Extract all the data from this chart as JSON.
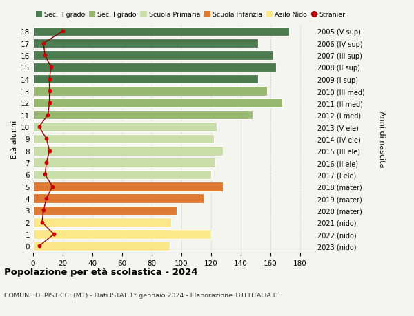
{
  "ages": [
    0,
    1,
    2,
    3,
    4,
    5,
    6,
    7,
    8,
    9,
    10,
    11,
    12,
    13,
    14,
    15,
    16,
    17,
    18
  ],
  "right_labels": [
    "2023 (nido)",
    "2022 (nido)",
    "2021 (nido)",
    "2020 (mater)",
    "2019 (mater)",
    "2018 (mater)",
    "2017 (I ele)",
    "2016 (II ele)",
    "2015 (III ele)",
    "2014 (IV ele)",
    "2013 (V ele)",
    "2012 (I med)",
    "2011 (II med)",
    "2010 (III med)",
    "2009 (I sup)",
    "2008 (II sup)",
    "2007 (III sup)",
    "2006 (IV sup)",
    "2005 (V sup)"
  ],
  "bar_values": [
    92,
    120,
    93,
    97,
    115,
    128,
    120,
    123,
    128,
    122,
    124,
    148,
    168,
    158,
    152,
    164,
    162,
    152,
    173
  ],
  "bar_colors": [
    "#fce88a",
    "#fce88a",
    "#fce88a",
    "#df7a35",
    "#df7a35",
    "#df7a35",
    "#c8dda8",
    "#c8dda8",
    "#c8dda8",
    "#c8dda8",
    "#c8dda8",
    "#98b872",
    "#98b872",
    "#98b872",
    "#4d7c50",
    "#4d7c50",
    "#4d7c50",
    "#4d7c50",
    "#4d7c50"
  ],
  "stranieri_values": [
    4,
    14,
    6,
    7,
    9,
    13,
    8,
    9,
    11,
    9,
    4,
    10,
    11,
    11,
    11,
    12,
    8,
    7,
    20
  ],
  "legend_labels": [
    "Sec. II grado",
    "Sec. I grado",
    "Scuola Primaria",
    "Scuola Infanzia",
    "Asilo Nido",
    "Stranieri"
  ],
  "legend_colors": [
    "#4d7c50",
    "#98b872",
    "#c8dda8",
    "#df7a35",
    "#fce88a",
    "#cc0000"
  ],
  "title": "Popolazione per età scolastica - 2024",
  "subtitle": "COMUNE DI PISTICCI (MT) - Dati ISTAT 1° gennaio 2024 - Elaborazione TUTTITALIA.IT",
  "ylabel_left": "Età alunni",
  "ylabel_right": "Anni di nascita",
  "xlim": [
    0,
    190
  ],
  "xticks": [
    0,
    20,
    40,
    60,
    80,
    100,
    120,
    140,
    160,
    180
  ],
  "background_color": "#f5f5f0",
  "bar_height": 0.78
}
